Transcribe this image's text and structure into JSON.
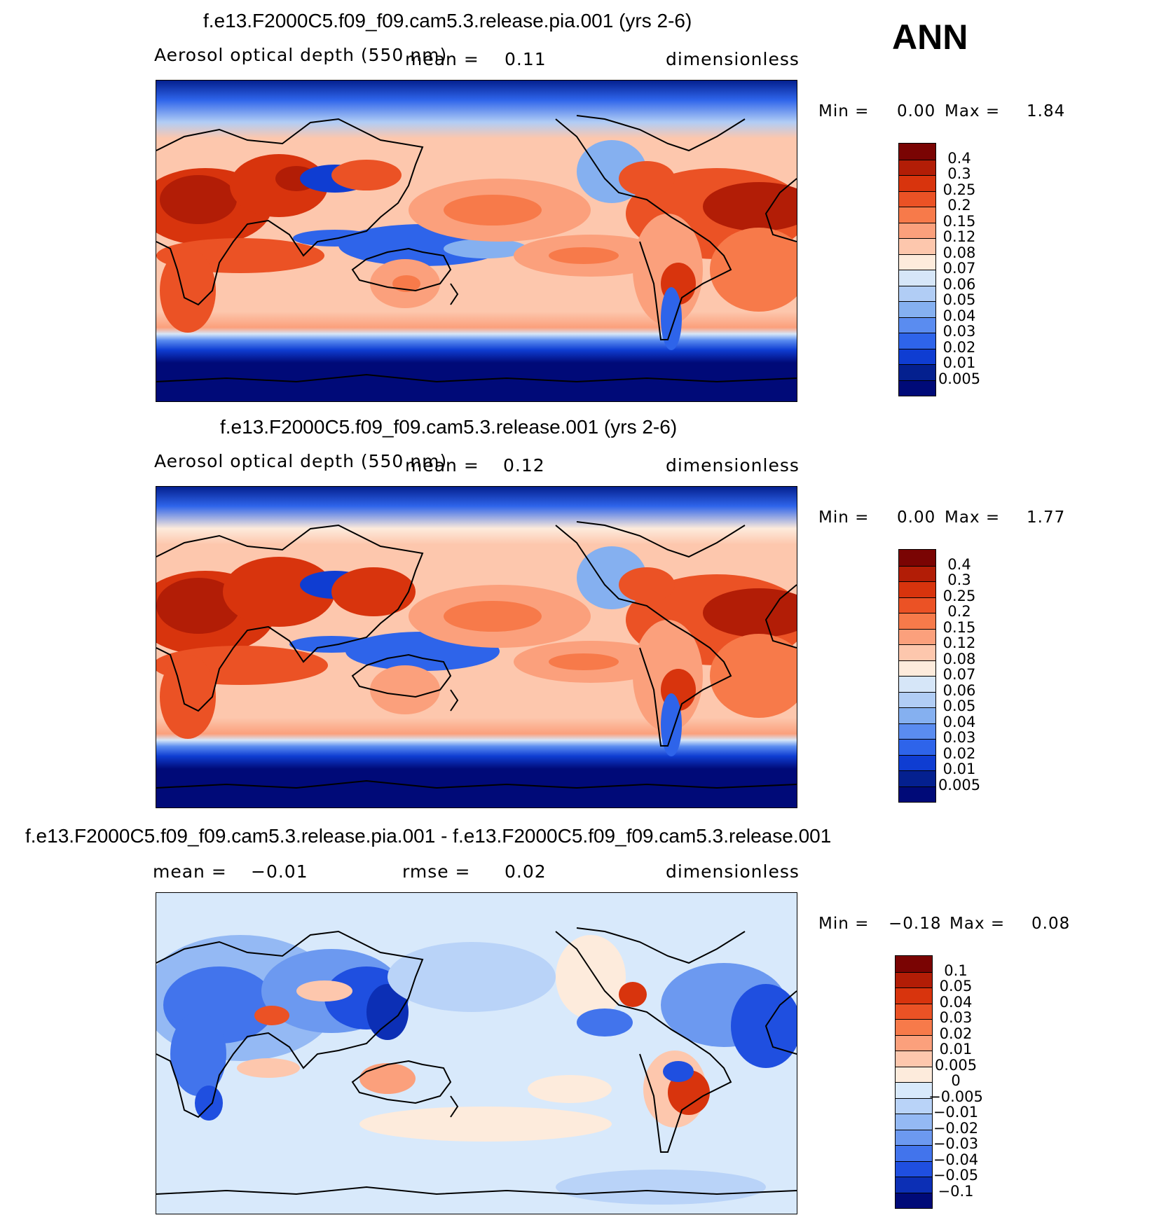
{
  "season": "ANN",
  "panels": [
    {
      "title": "f.e13.F2000C5.f09_f09.cam5.3.release.pia.001 (yrs 2-6)",
      "left_label": "Aerosol optical depth (550 nm)",
      "mean_label": "mean =",
      "mean_value": "0.11",
      "units": "dimensionless",
      "min_label": "Min =",
      "min_value": "0.00",
      "max_label": "Max =",
      "max_value": "1.84",
      "levels": [
        "0.4",
        "0.3",
        "0.25",
        "0.2",
        "0.15",
        "0.12",
        "0.08",
        "0.07",
        "0.06",
        "0.05",
        "0.04",
        "0.03",
        "0.02",
        "0.01",
        "0.005"
      ]
    },
    {
      "title": "f.e13.F2000C5.f09_f09.cam5.3.release.001 (yrs 2-6)",
      "left_label": "Aerosol optical depth (550 nm)",
      "mean_label": "mean =",
      "mean_value": "0.12",
      "units": "dimensionless",
      "min_label": "Min =",
      "min_value": "0.00",
      "max_label": "Max =",
      "max_value": "1.77",
      "levels": [
        "0.4",
        "0.3",
        "0.25",
        "0.2",
        "0.15",
        "0.12",
        "0.08",
        "0.07",
        "0.06",
        "0.05",
        "0.04",
        "0.03",
        "0.02",
        "0.01",
        "0.005"
      ]
    },
    {
      "title": "f.e13.F2000C5.f09_f09.cam5.3.release.pia.001 - f.e13.F2000C5.f09_f09.cam5.3.release.001",
      "mean_label": "mean =",
      "mean_value": "−0.01",
      "rmse_label": "rmse =",
      "rmse_value": "0.02",
      "units": "dimensionless",
      "min_label": "Min =",
      "min_value": "−0.18",
      "max_label": "Max =",
      "max_value": "0.08",
      "levels": [
        "0.1",
        "0.05",
        "0.04",
        "0.03",
        "0.02",
        "0.01",
        "0.005",
        "0",
        "−0.005",
        "−0.01",
        "−0.02",
        "−0.03",
        "−0.04",
        "−0.05",
        "−0.1"
      ]
    }
  ],
  "colors": {
    "abs_scale": [
      "#7a0403",
      "#b21d06",
      "#d8340d",
      "#eb5225",
      "#f77a4a",
      "#fba07c",
      "#fdc7ad",
      "#fdebdc",
      "#d6e6f8",
      "#b1cdf5",
      "#85b0f0",
      "#5a8cf0",
      "#2e64ea",
      "#0f3dd2",
      "#04208f",
      "#000a78"
    ],
    "diff_scale": [
      "#7a0403",
      "#b21d06",
      "#d8340d",
      "#eb5225",
      "#f77a4a",
      "#fba07c",
      "#fdc7ad",
      "#fdebdc",
      "#d8e9fb",
      "#b9d3f8",
      "#94b9f4",
      "#6c99f0",
      "#4274ec",
      "#1f4fe0",
      "#0c2fb5",
      "#000a78"
    ]
  },
  "chart_data": [
    {
      "type": "heatmap",
      "title": "f.e13.F2000C5.f09_f09.cam5.3.release.pia.001 (yrs 2-6)",
      "variable": "Aerosol optical depth (550 nm)",
      "units": "dimensionless",
      "mean": 0.11,
      "min": 0.0,
      "max": 1.84,
      "contour_levels": [
        0.005,
        0.01,
        0.02,
        0.03,
        0.04,
        0.05,
        0.06,
        0.07,
        0.08,
        0.12,
        0.15,
        0.2,
        0.25,
        0.3,
        0.4
      ],
      "projection": "cylindrical equidistant, centered on Pacific"
    },
    {
      "type": "heatmap",
      "title": "f.e13.F2000C5.f09_f09.cam5.3.release.001 (yrs 2-6)",
      "variable": "Aerosol optical depth (550 nm)",
      "units": "dimensionless",
      "mean": 0.12,
      "min": 0.0,
      "max": 1.77,
      "contour_levels": [
        0.005,
        0.01,
        0.02,
        0.03,
        0.04,
        0.05,
        0.06,
        0.07,
        0.08,
        0.12,
        0.15,
        0.2,
        0.25,
        0.3,
        0.4
      ],
      "projection": "cylindrical equidistant, centered on Pacific"
    },
    {
      "type": "heatmap",
      "title": "f.e13.F2000C5.f09_f09.cam5.3.release.pia.001 - f.e13.F2000C5.f09_f09.cam5.3.release.001",
      "units": "dimensionless",
      "mean": -0.01,
      "rmse": 0.02,
      "min": -0.18,
      "max": 0.08,
      "contour_levels": [
        -0.1,
        -0.05,
        -0.04,
        -0.03,
        -0.02,
        -0.01,
        -0.005,
        0,
        0.005,
        0.01,
        0.02,
        0.03,
        0.04,
        0.05,
        0.1
      ],
      "projection": "cylindrical equidistant, centered on Pacific"
    }
  ]
}
